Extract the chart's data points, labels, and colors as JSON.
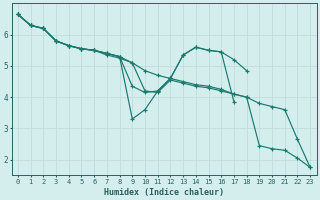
{
  "xlabel": "Humidex (Indice chaleur)",
  "bg_color": "#d4eeee",
  "line_color": "#1a7a6e",
  "grid_color": "#c0dcdc",
  "axis_color": "#2a6060",
  "xlim": [
    -0.5,
    23.5
  ],
  "ylim": [
    1.5,
    7.0
  ],
  "yticks": [
    2,
    3,
    4,
    5,
    6
  ],
  "xticks": [
    0,
    1,
    2,
    3,
    4,
    5,
    6,
    7,
    8,
    9,
    10,
    11,
    12,
    13,
    14,
    15,
    16,
    17,
    18,
    19,
    20,
    21,
    22,
    23
  ],
  "lines": [
    {
      "x": [
        0,
        1,
        2,
        3,
        4,
        5,
        6,
        7,
        8,
        9,
        10,
        11,
        12,
        13,
        14,
        15,
        16,
        17,
        18,
        19,
        20,
        21,
        22,
        23
      ],
      "y": [
        6.65,
        6.3,
        6.2,
        5.8,
        5.65,
        5.55,
        5.5,
        5.4,
        5.3,
        5.1,
        4.85,
        4.7,
        4.6,
        4.5,
        4.4,
        4.35,
        4.25,
        4.1,
        4.0,
        3.8,
        3.7,
        3.6,
        2.65,
        1.75
      ]
    },
    {
      "x": [
        0,
        1,
        2,
        3,
        4,
        5,
        6,
        7,
        8,
        9,
        10,
        11,
        12,
        13,
        14,
        15,
        16,
        17,
        18
      ],
      "y": [
        6.65,
        6.3,
        6.2,
        5.8,
        5.65,
        5.55,
        5.5,
        5.4,
        5.3,
        4.35,
        4.15,
        4.2,
        4.6,
        5.35,
        5.6,
        5.5,
        5.45,
        5.2,
        4.85
      ]
    },
    {
      "x": [
        0,
        1,
        2,
        3,
        4,
        5,
        6,
        7,
        8,
        9,
        10,
        11,
        12,
        13,
        14,
        15,
        16,
        17
      ],
      "y": [
        6.65,
        6.3,
        6.2,
        5.8,
        5.65,
        5.55,
        5.5,
        5.4,
        5.3,
        3.3,
        3.6,
        4.2,
        4.6,
        5.35,
        5.6,
        5.5,
        5.45,
        3.85
      ]
    },
    {
      "x": [
        0,
        1,
        2,
        3,
        4,
        5,
        6,
        7,
        8,
        9,
        10,
        11,
        12,
        13,
        14,
        15,
        16,
        17,
        18,
        19,
        20,
        21,
        22,
        23
      ],
      "y": [
        6.65,
        6.3,
        6.2,
        5.8,
        5.65,
        5.55,
        5.5,
        5.35,
        5.25,
        5.1,
        4.2,
        4.15,
        4.55,
        4.45,
        4.35,
        4.3,
        4.2,
        4.1,
        4.0,
        2.45,
        2.35,
        2.3,
        2.05,
        1.75
      ]
    }
  ]
}
